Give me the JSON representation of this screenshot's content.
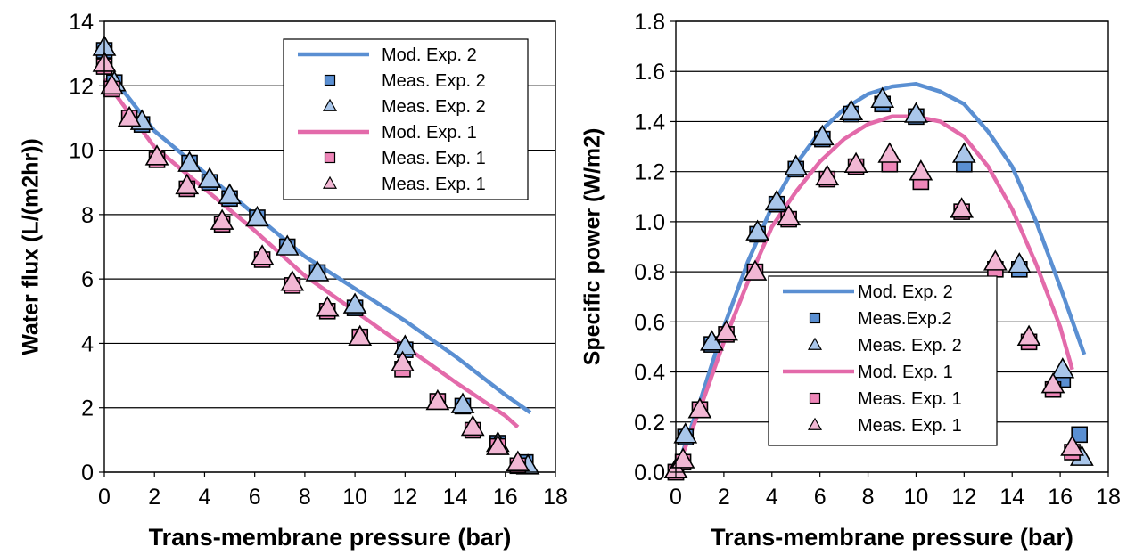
{
  "chart_data": [
    {
      "type": "scatter",
      "xlabel": "Trans-membrane pressure (bar)",
      "ylabel": "Water flux (L/(m2hr))",
      "xlim": [
        0,
        18
      ],
      "ylim": [
        0,
        14
      ],
      "xticks": [
        "0",
        "2",
        "4",
        "6",
        "8",
        "10",
        "12",
        "14",
        "16",
        "18"
      ],
      "yticks": [
        "0",
        "2",
        "4",
        "6",
        "8",
        "10",
        "12",
        "14"
      ],
      "grid": "horizontal",
      "legend_position": "top-right",
      "series": [
        {
          "name": "Mod. Exp. 2",
          "kind": "line",
          "color": "#5a8fd2",
          "x": [
            0.0,
            2.0,
            4.0,
            6.0,
            8.0,
            10.0,
            12.0,
            14.0,
            16.0,
            17.0
          ],
          "y": [
            12.6,
            10.6,
            9.3,
            8.0,
            6.7,
            5.7,
            4.7,
            3.6,
            2.4,
            1.85
          ]
        },
        {
          "name": "Meas. Exp. 2",
          "kind": "square",
          "color": "#5a8fd2",
          "x": [
            0.0,
            0.4,
            1.5,
            3.4,
            4.2,
            5.0,
            6.1,
            7.3,
            8.5,
            10.0,
            12.0,
            14.3,
            15.7,
            16.8
          ],
          "y": [
            13.1,
            12.1,
            10.8,
            9.6,
            9.0,
            8.5,
            7.9,
            7.0,
            6.2,
            5.1,
            3.8,
            2.05,
            0.9,
            0.3
          ]
        },
        {
          "name": "Meas. Exp. 2",
          "kind": "triangle",
          "color": "#a9c6ea",
          "x": [
            0.0,
            0.4,
            1.5,
            3.4,
            4.2,
            5.0,
            6.1,
            7.3,
            8.5,
            10.0,
            12.0,
            14.3,
            15.7,
            16.9
          ],
          "y": [
            13.2,
            12.1,
            10.9,
            9.6,
            9.1,
            8.6,
            7.9,
            7.0,
            6.2,
            5.2,
            3.9,
            2.1,
            0.9,
            0.2
          ]
        },
        {
          "name": "Mod. Exp. 1",
          "kind": "line",
          "color": "#e36aaa",
          "x": [
            0.0,
            2.0,
            4.0,
            6.0,
            8.0,
            10.0,
            12.0,
            14.0,
            16.0,
            16.5
          ],
          "y": [
            12.2,
            10.1,
            8.8,
            7.5,
            6.1,
            5.0,
            3.9,
            2.8,
            1.75,
            1.4
          ]
        },
        {
          "name": "Meas. Exp. 1",
          "kind": "square",
          "color": "#ee86b8",
          "x": [
            0.0,
            0.3,
            1.0,
            2.1,
            3.3,
            4.7,
            6.3,
            7.5,
            8.9,
            10.2,
            11.9,
            13.3,
            14.7,
            15.7,
            16.5
          ],
          "y": [
            12.6,
            11.9,
            11.0,
            9.7,
            8.8,
            7.7,
            6.6,
            5.8,
            5.0,
            4.2,
            3.2,
            2.2,
            1.3,
            0.8,
            0.2
          ]
        },
        {
          "name": "Meas. Exp. 1",
          "kind": "triangle",
          "color": "#f2b7d4",
          "x": [
            0.0,
            0.3,
            1.0,
            2.1,
            3.3,
            4.7,
            6.3,
            7.5,
            8.9,
            10.2,
            11.9,
            13.3,
            14.7,
            15.7,
            16.5
          ],
          "y": [
            12.7,
            12.0,
            11.0,
            9.8,
            8.9,
            7.8,
            6.7,
            5.9,
            5.1,
            4.2,
            3.4,
            2.2,
            1.4,
            0.8,
            0.3
          ]
        }
      ]
    },
    {
      "type": "scatter",
      "xlabel": "Trans-membrane pressure (bar)",
      "ylabel": "Specific power (W/m2)",
      "xlim": [
        0,
        18
      ],
      "ylim": [
        0.0,
        1.8
      ],
      "xticks": [
        "0",
        "2",
        "4",
        "6",
        "8",
        "10",
        "12",
        "14",
        "16",
        "18"
      ],
      "yticks": [
        "0.0",
        "0.2",
        "0.4",
        "0.6",
        "0.8",
        "1.0",
        "1.2",
        "1.4",
        "1.6",
        "1.8"
      ],
      "grid": "horizontal",
      "legend_position": "bottom-center",
      "series": [
        {
          "name": "Mod. Exp. 2",
          "kind": "line",
          "color": "#5a8fd2",
          "x": [
            0.0,
            1.0,
            2.0,
            3.0,
            4.0,
            5.0,
            6.0,
            7.0,
            8.0,
            9.0,
            10.0,
            11.0,
            12.0,
            13.0,
            14.0,
            15.0,
            16.0,
            17.0
          ],
          "y": [
            0.0,
            0.28,
            0.58,
            0.84,
            1.06,
            1.23,
            1.36,
            1.45,
            1.51,
            1.54,
            1.55,
            1.52,
            1.47,
            1.36,
            1.22,
            1.0,
            0.74,
            0.47
          ]
        },
        {
          "name": "Meas.Exp.2",
          "kind": "square",
          "color": "#5a8fd2",
          "x": [
            0.0,
            0.4,
            1.5,
            3.4,
            4.2,
            5.0,
            6.1,
            7.3,
            8.6,
            10.0,
            12.0,
            14.3,
            16.1,
            16.8
          ],
          "y": [
            0.0,
            0.14,
            0.51,
            0.95,
            1.07,
            1.21,
            1.33,
            1.43,
            1.47,
            1.42,
            1.23,
            0.81,
            0.37,
            0.15
          ]
        },
        {
          "name": "Meas. Exp. 2",
          "kind": "triangle",
          "color": "#a9c6ea",
          "x": [
            0.0,
            0.4,
            1.5,
            3.4,
            4.2,
            5.0,
            6.1,
            7.3,
            8.6,
            10.0,
            12.0,
            14.3,
            16.1,
            16.9
          ],
          "y": [
            0.01,
            0.15,
            0.52,
            0.96,
            1.08,
            1.22,
            1.34,
            1.44,
            1.49,
            1.43,
            1.27,
            0.83,
            0.41,
            0.06
          ]
        },
        {
          "name": "Mod. Exp. 1",
          "kind": "line",
          "color": "#e36aaa",
          "x": [
            0.0,
            1.0,
            2.0,
            3.0,
            4.0,
            5.0,
            6.0,
            7.0,
            8.0,
            9.0,
            10.0,
            11.0,
            12.0,
            13.0,
            14.0,
            15.0,
            16.0,
            16.5
          ],
          "y": [
            0.0,
            0.25,
            0.52,
            0.76,
            0.98,
            1.12,
            1.24,
            1.33,
            1.39,
            1.42,
            1.42,
            1.4,
            1.34,
            1.22,
            1.05,
            0.83,
            0.58,
            0.41
          ]
        },
        {
          "name": "Meas. Exp. 1",
          "kind": "square",
          "color": "#ee86b8",
          "x": [
            0.0,
            0.3,
            1.0,
            2.1,
            3.3,
            4.7,
            6.3,
            7.5,
            8.9,
            10.2,
            11.9,
            13.3,
            14.7,
            15.7,
            16.5
          ],
          "y": [
            0.0,
            0.04,
            0.25,
            0.55,
            0.8,
            1.01,
            1.17,
            1.22,
            1.23,
            1.16,
            1.04,
            0.81,
            0.52,
            0.33,
            0.08
          ]
        },
        {
          "name": "Meas. Exp. 1",
          "kind": "triangle",
          "color": "#f2b7d4",
          "x": [
            0.0,
            0.3,
            1.0,
            2.1,
            3.3,
            4.7,
            6.3,
            7.5,
            8.9,
            10.2,
            11.9,
            13.3,
            14.7,
            15.7,
            16.5
          ],
          "y": [
            0.01,
            0.05,
            0.25,
            0.56,
            0.8,
            1.02,
            1.18,
            1.23,
            1.27,
            1.2,
            1.05,
            0.84,
            0.54,
            0.35,
            0.1
          ]
        }
      ]
    }
  ]
}
